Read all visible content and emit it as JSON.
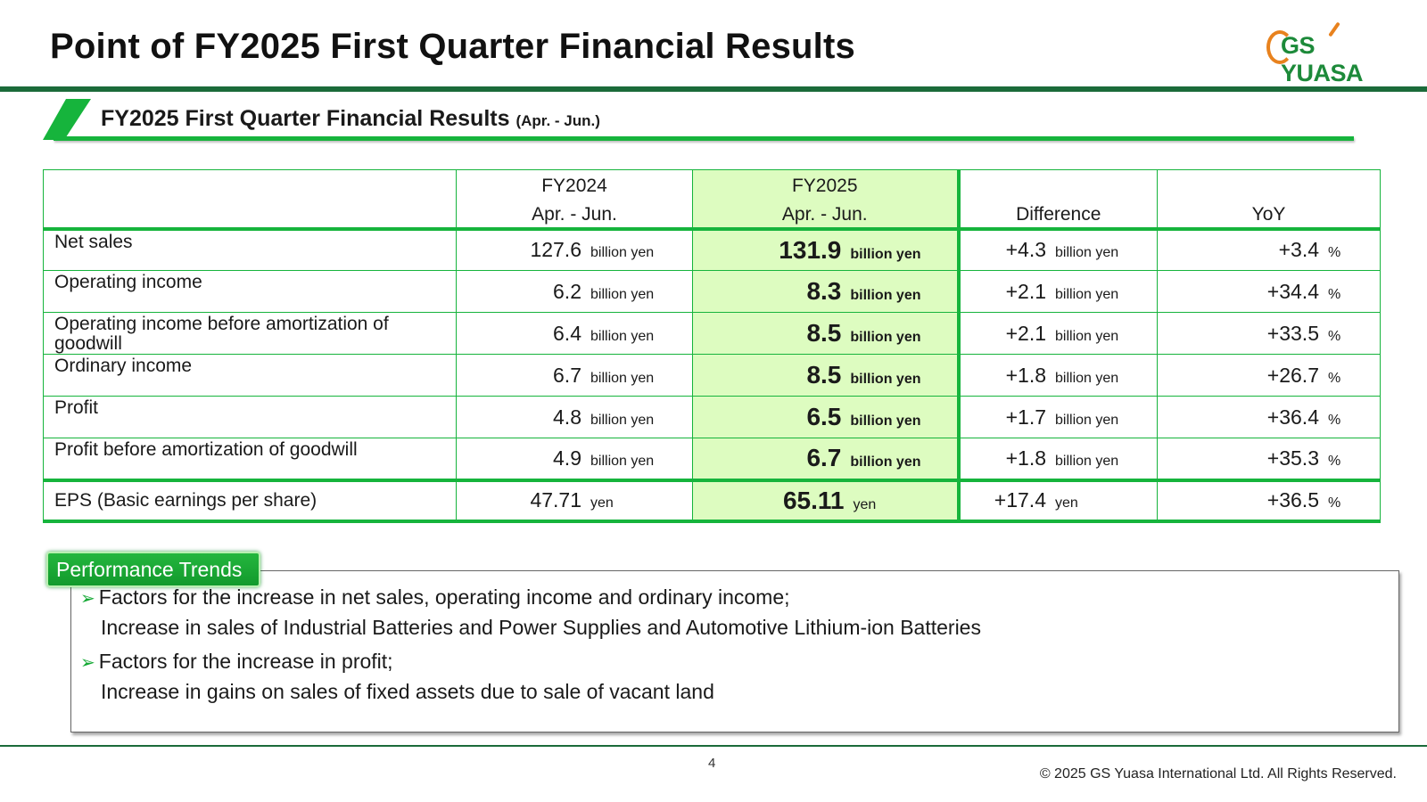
{
  "header": {
    "title": "Point of FY2025 First Quarter Financial Results",
    "logo_text": "GS YUASA"
  },
  "section": {
    "title": "FY2025 First Quarter Financial Results",
    "period_note": "(Apr. - Jun.)"
  },
  "table": {
    "columns": [
      {
        "year": "FY2024",
        "period": "Apr. - Jun."
      },
      {
        "year": "FY2025",
        "period": "Apr. - Jun."
      },
      {
        "year": "",
        "period": "Difference"
      },
      {
        "year": "",
        "period": "YoY"
      }
    ],
    "rows": [
      {
        "label": "Net sales",
        "fy2024": "127.6",
        "fy2025": "131.9",
        "diff": "+4.3",
        "yoy": "+3.4",
        "unit": "billion yen",
        "pct": "%"
      },
      {
        "label": "Operating income",
        "fy2024": "6.2",
        "fy2025": "8.3",
        "diff": "+2.1",
        "yoy": "+34.4",
        "unit": "billion yen",
        "pct": "%"
      },
      {
        "label": "Operating income before amortization of goodwill",
        "fy2024": "6.4",
        "fy2025": "8.5",
        "diff": "+2.1",
        "yoy": "+33.5",
        "unit": "billion yen",
        "pct": "%"
      },
      {
        "label": "Ordinary income",
        "fy2024": "6.7",
        "fy2025": "8.5",
        "diff": "+1.8",
        "yoy": "+26.7",
        "unit": "billion yen",
        "pct": "%"
      },
      {
        "label": "Profit",
        "fy2024": "4.8",
        "fy2025": "6.5",
        "diff": "+1.7",
        "yoy": "+36.4",
        "unit": "billion yen",
        "pct": "%"
      },
      {
        "label": "Profit before amortization of goodwill",
        "fy2024": "4.9",
        "fy2025": "6.7",
        "diff": "+1.8",
        "yoy": "+35.3",
        "unit": "billion yen",
        "pct": "%"
      },
      {
        "label": "EPS (Basic earnings per share)",
        "fy2024": "47.71",
        "fy2025": "65.11",
        "diff": "+17.4",
        "yoy": "+36.5",
        "unit": "yen",
        "pct": "%"
      }
    ]
  },
  "performance": {
    "tag": "Performance Trends",
    "items": [
      {
        "heading": "Factors for the increase in net sales, operating income and ordinary income;",
        "detail": "Increase in sales of Industrial Batteries and Power Supplies and Automotive Lithium-ion Batteries"
      },
      {
        "heading": "Factors for the increase in profit;",
        "detail": "Increase in gains on sales of fixed assets due to sale of vacant land"
      }
    ]
  },
  "footer": {
    "page_number": "4",
    "copyright": "© 2025 GS Yuasa International Ltd. All Rights Reserved."
  },
  "colors": {
    "brand_green": "#16b43c",
    "dark_green": "#1b6b3a",
    "highlight": "#ddfcc0",
    "logo_orange": "#e8821e"
  }
}
